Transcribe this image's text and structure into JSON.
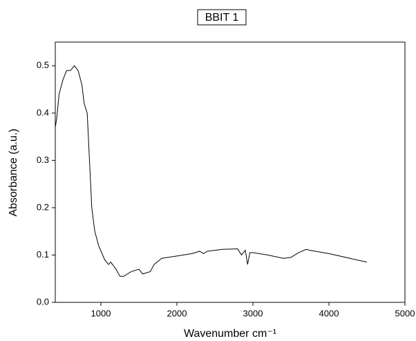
{
  "chart_data": {
    "type": "line",
    "title": "BBIT 1",
    "xlabel": "Wavenumber cm⁻¹",
    "ylabel": "Absorbance (a.u.)",
    "xlim": [
      400,
      5000
    ],
    "ylim": [
      0,
      0.55
    ],
    "xticks": [
      1000,
      2000,
      3000,
      4000,
      5000
    ],
    "yticks": [
      {
        "value": 0,
        "label": "0.0"
      },
      0.1,
      0.2,
      0.3,
      0.4,
      0.5
    ],
    "series": [
      {
        "name": "BBIT 1",
        "color": "#000000",
        "x": [
          400,
          420,
          450,
          500,
          550,
          600,
          650,
          700,
          750,
          780,
          820,
          850,
          880,
          920,
          970,
          1050,
          1100,
          1130,
          1200,
          1250,
          1300,
          1400,
          1500,
          1550,
          1650,
          1700,
          1800,
          2000,
          2200,
          2300,
          2350,
          2400,
          2600,
          2800,
          2850,
          2900,
          2930,
          2960,
          3000,
          3200,
          3400,
          3500,
          3600,
          3700,
          3750,
          4000,
          4500
        ],
        "values": [
          0.37,
          0.39,
          0.44,
          0.47,
          0.49,
          0.49,
          0.5,
          0.49,
          0.46,
          0.42,
          0.4,
          0.3,
          0.2,
          0.15,
          0.12,
          0.09,
          0.08,
          0.085,
          0.07,
          0.055,
          0.055,
          0.065,
          0.07,
          0.06,
          0.065,
          0.08,
          0.093,
          0.098,
          0.103,
          0.108,
          0.103,
          0.108,
          0.112,
          0.113,
          0.1,
          0.11,
          0.08,
          0.105,
          0.105,
          0.1,
          0.093,
          0.095,
          0.105,
          0.112,
          0.11,
          0.103,
          0.085
        ]
      }
    ]
  }
}
